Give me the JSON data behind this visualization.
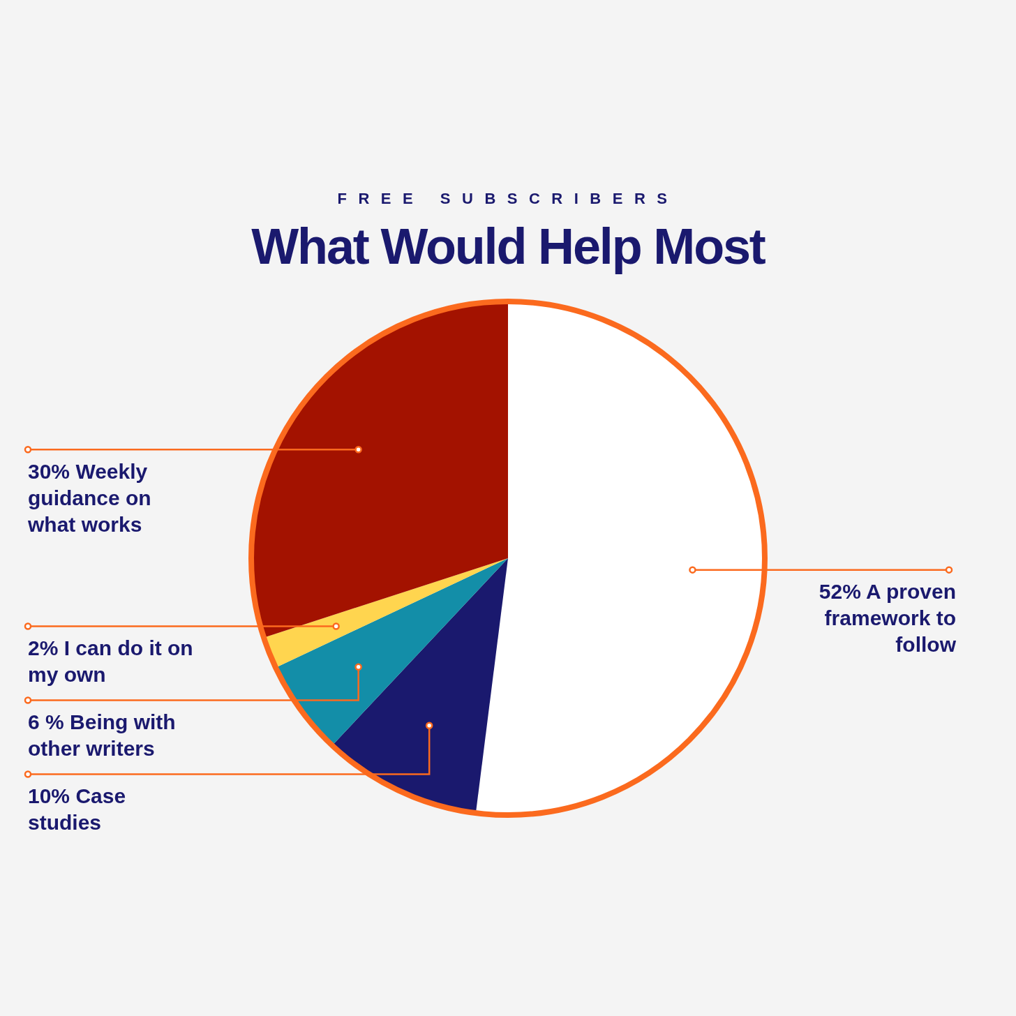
{
  "chart_data": {
    "type": "pie",
    "subtitle": "FREE SUBSCRIBERS",
    "title": "What Would Help Most",
    "categories": [
      "A proven framework to follow",
      "Case studies",
      "Being with other writers",
      "I can do it on my own",
      "Weekly guidance on what works"
    ],
    "values": [
      52,
      10,
      6,
      2,
      30
    ],
    "value_labels": [
      "52%",
      "10%",
      "6 %",
      "2%",
      "30%"
    ],
    "colors": [
      "#ffffff",
      "#1a196e",
      "#138ea8",
      "#ffd54f",
      "#a31200"
    ]
  }
}
